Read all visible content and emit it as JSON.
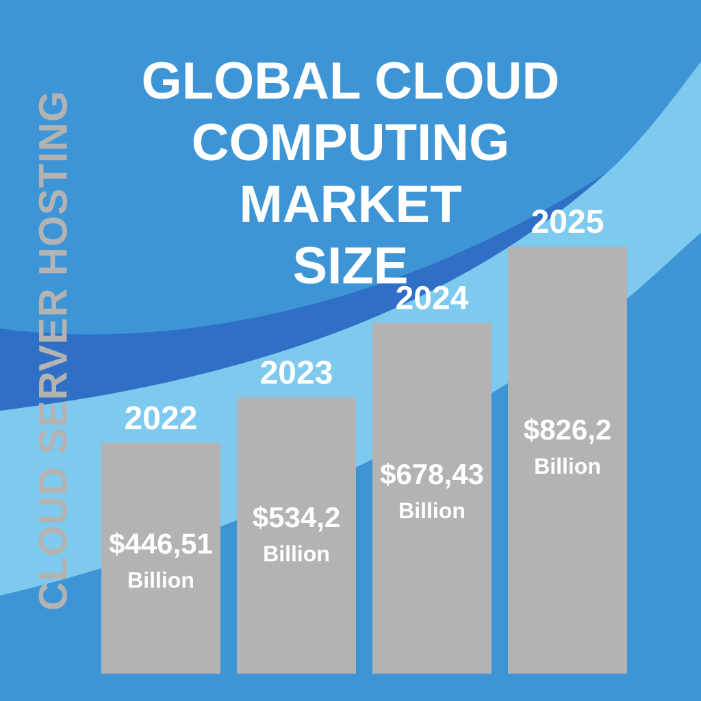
{
  "title_lines": [
    "GLOBAL CLOUD",
    "COMPUTING MARKET",
    "SIZE"
  ],
  "side_text": "CLOUD SERVER HOSTING",
  "colors": {
    "background": "#3d95d6",
    "band_dark": "#2f6fc5",
    "band_light": "#7ec9ee",
    "bar": "#b3b3b3",
    "text": "#ffffff",
    "side_text": "#b3b3b3"
  },
  "chart_data": {
    "type": "bar",
    "categories": [
      "2022",
      "2023",
      "2024",
      "2025"
    ],
    "values": [
      446.51,
      534.2,
      678.43,
      826.2
    ],
    "value_labels": [
      "$446,51",
      "$534,2",
      "$678,43",
      "$826,2"
    ],
    "unit_label": "Billion",
    "title": "GLOBAL CLOUD COMPUTING MARKET SIZE",
    "xlabel": "",
    "ylabel": ""
  }
}
